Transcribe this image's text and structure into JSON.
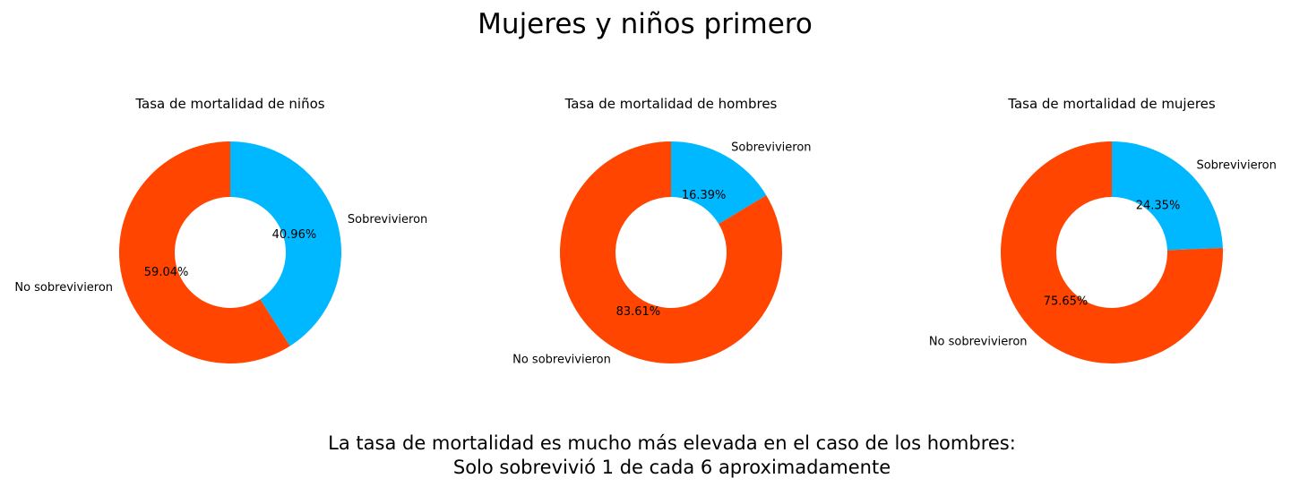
{
  "figure": {
    "title": "Mujeres y niños primero",
    "caption_lines": [
      "La tasa de mortalidad es mucho más elevada en el caso de los hombres:",
      "Solo sobrevivió 1 de cada 6 aproximadamente"
    ]
  },
  "chart_data": [
    {
      "type": "pie",
      "donut": true,
      "title": "Tasa de mortalidad de niños",
      "labels": [
        "Sobrevivieron",
        "No sobrevivieron"
      ],
      "values": [
        40.96,
        59.04
      ],
      "value_labels": [
        "40.96%",
        "59.04%"
      ],
      "colors": [
        "#00b8ff",
        "#ff4500"
      ]
    },
    {
      "type": "pie",
      "donut": true,
      "title": "Tasa de mortalidad de hombres",
      "labels": [
        "Sobrevivieron",
        "No sobrevivieron"
      ],
      "values": [
        16.39,
        83.61
      ],
      "value_labels": [
        "16.39%",
        "83.61%"
      ],
      "colors": [
        "#00b8ff",
        "#ff4500"
      ]
    },
    {
      "type": "pie",
      "donut": true,
      "title": "Tasa de mortalidad de mujeres",
      "labels": [
        "Sobrevivieron",
        "No sobrevivieron"
      ],
      "values": [
        24.35,
        75.65
      ],
      "value_labels": [
        "24.35%",
        "75.65%"
      ],
      "colors": [
        "#00b8ff",
        "#ff4500"
      ]
    }
  ]
}
